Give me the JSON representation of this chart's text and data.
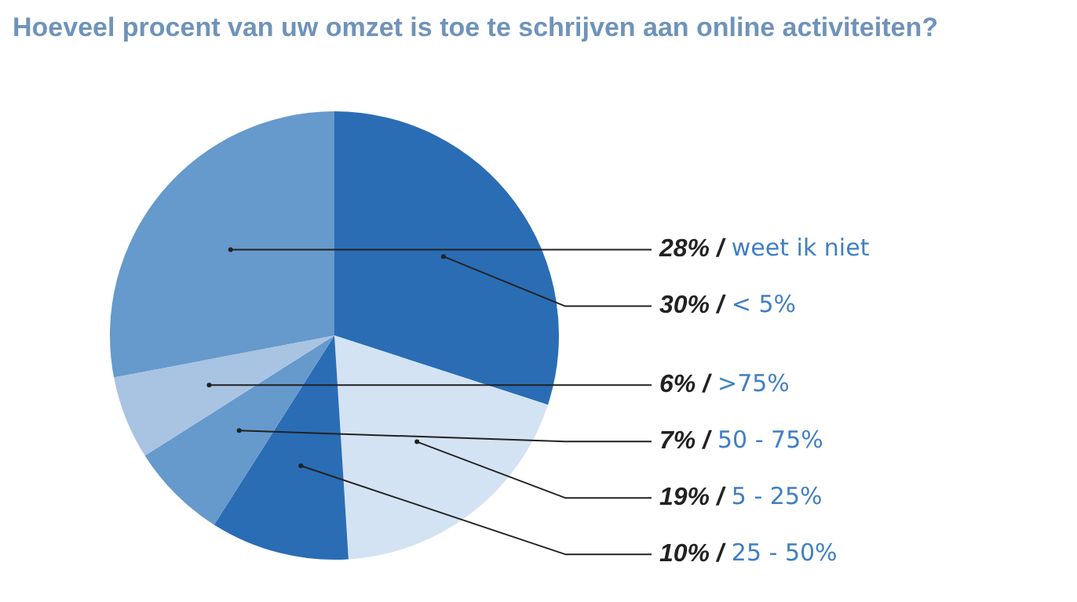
{
  "chart_data": {
    "type": "pie",
    "title": "Hoeveel procent van uw omzet is toe te schrijven aan online activiteiten?",
    "categories": [
      "< 5%",
      "5 - 25%",
      "25 - 50%",
      "50 - 75%",
      ">75%",
      "weet ik niet"
    ],
    "values": [
      30,
      19,
      10,
      7,
      6,
      28
    ],
    "colors": [
      "#2a6db5",
      "#d3e3f3",
      "#2a6db5",
      "#6699cc",
      "#a8c4e2",
      "#6699cc"
    ],
    "value_labels": [
      "30% /",
      "19% /",
      "10% /",
      "7% /",
      "6% /",
      "28% /"
    ],
    "legend": false
  }
}
